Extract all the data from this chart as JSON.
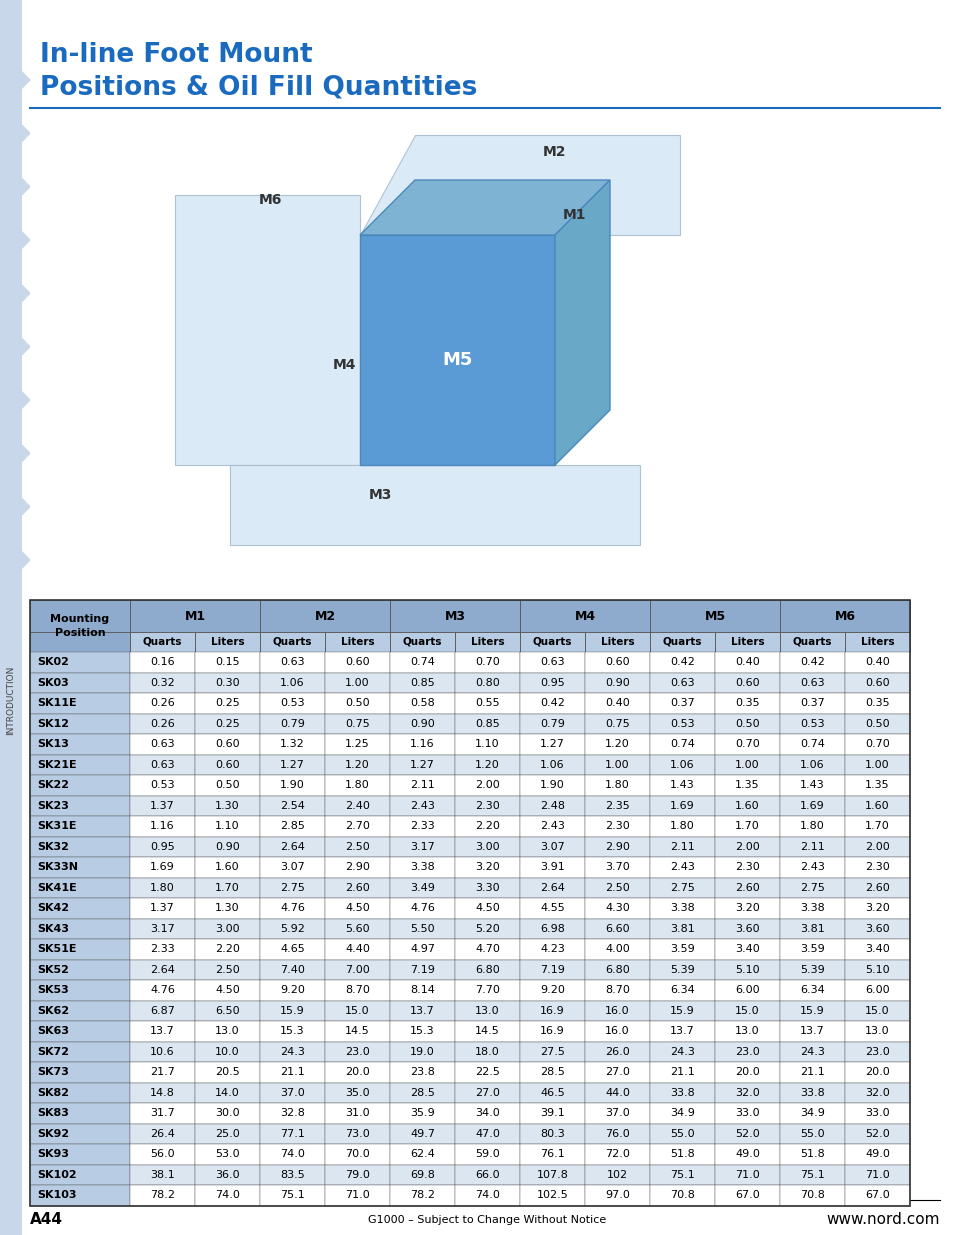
{
  "title_line1": "In-line Foot Mount",
  "title_line2": "Positions & Oil Fill Quantities",
  "title_color": "#1a6bbf",
  "page_label": "A44",
  "footer_center": "G1000 – Subject to Change Without Notice",
  "footer_right": "www.nord.com",
  "sidebar_text": "INTRODUCTION",
  "sidebar_color": "#c8d8ea",
  "header_bg": "#b8cce4",
  "row_bg_light": "#ffffff",
  "row_bg_dark": "#dce6f1",
  "col_header_bg": "#8eaacc",
  "subheader_bg": "#b8cce4",
  "mounting_positions": [
    "M1",
    "M2",
    "M3",
    "M4",
    "M5",
    "M6"
  ],
  "subheaders": [
    "Quarts",
    "Liters"
  ],
  "rows": [
    {
      "model": "SK02",
      "M1": [
        "0.16",
        "0.15"
      ],
      "M2": [
        "0.63",
        "0.60"
      ],
      "M3": [
        "0.74",
        "0.70"
      ],
      "M4": [
        "0.63",
        "0.60"
      ],
      "M5": [
        "0.42",
        "0.40"
      ],
      "M6": [
        "0.42",
        "0.40"
      ]
    },
    {
      "model": "SK03",
      "M1": [
        "0.32",
        "0.30"
      ],
      "M2": [
        "1.06",
        "1.00"
      ],
      "M3": [
        "0.85",
        "0.80"
      ],
      "M4": [
        "0.95",
        "0.90"
      ],
      "M5": [
        "0.63",
        "0.60"
      ],
      "M6": [
        "0.63",
        "0.60"
      ]
    },
    {
      "model": "SK11E",
      "M1": [
        "0.26",
        "0.25"
      ],
      "M2": [
        "0.53",
        "0.50"
      ],
      "M3": [
        "0.58",
        "0.55"
      ],
      "M4": [
        "0.42",
        "0.40"
      ],
      "M5": [
        "0.37",
        "0.35"
      ],
      "M6": [
        "0.37",
        "0.35"
      ]
    },
    {
      "model": "SK12",
      "M1": [
        "0.26",
        "0.25"
      ],
      "M2": [
        "0.79",
        "0.75"
      ],
      "M3": [
        "0.90",
        "0.85"
      ],
      "M4": [
        "0.79",
        "0.75"
      ],
      "M5": [
        "0.53",
        "0.50"
      ],
      "M6": [
        "0.53",
        "0.50"
      ]
    },
    {
      "model": "SK13",
      "M1": [
        "0.63",
        "0.60"
      ],
      "M2": [
        "1.32",
        "1.25"
      ],
      "M3": [
        "1.16",
        "1.10"
      ],
      "M4": [
        "1.27",
        "1.20"
      ],
      "M5": [
        "0.74",
        "0.70"
      ],
      "M6": [
        "0.74",
        "0.70"
      ]
    },
    {
      "model": "SK21E",
      "M1": [
        "0.63",
        "0.60"
      ],
      "M2": [
        "1.27",
        "1.20"
      ],
      "M3": [
        "1.27",
        "1.20"
      ],
      "M4": [
        "1.06",
        "1.00"
      ],
      "M5": [
        "1.06",
        "1.00"
      ],
      "M6": [
        "1.06",
        "1.00"
      ]
    },
    {
      "model": "SK22",
      "M1": [
        "0.53",
        "0.50"
      ],
      "M2": [
        "1.90",
        "1.80"
      ],
      "M3": [
        "2.11",
        "2.00"
      ],
      "M4": [
        "1.90",
        "1.80"
      ],
      "M5": [
        "1.43",
        "1.35"
      ],
      "M6": [
        "1.43",
        "1.35"
      ]
    },
    {
      "model": "SK23",
      "M1": [
        "1.37",
        "1.30"
      ],
      "M2": [
        "2.54",
        "2.40"
      ],
      "M3": [
        "2.43",
        "2.30"
      ],
      "M4": [
        "2.48",
        "2.35"
      ],
      "M5": [
        "1.69",
        "1.60"
      ],
      "M6": [
        "1.69",
        "1.60"
      ]
    },
    {
      "model": "SK31E",
      "M1": [
        "1.16",
        "1.10"
      ],
      "M2": [
        "2.85",
        "2.70"
      ],
      "M3": [
        "2.33",
        "2.20"
      ],
      "M4": [
        "2.43",
        "2.30"
      ],
      "M5": [
        "1.80",
        "1.70"
      ],
      "M6": [
        "1.80",
        "1.70"
      ]
    },
    {
      "model": "SK32",
      "M1": [
        "0.95",
        "0.90"
      ],
      "M2": [
        "2.64",
        "2.50"
      ],
      "M3": [
        "3.17",
        "3.00"
      ],
      "M4": [
        "3.07",
        "2.90"
      ],
      "M5": [
        "2.11",
        "2.00"
      ],
      "M6": [
        "2.11",
        "2.00"
      ]
    },
    {
      "model": "SK33N",
      "M1": [
        "1.69",
        "1.60"
      ],
      "M2": [
        "3.07",
        "2.90"
      ],
      "M3": [
        "3.38",
        "3.20"
      ],
      "M4": [
        "3.91",
        "3.70"
      ],
      "M5": [
        "2.43",
        "2.30"
      ],
      "M6": [
        "2.43",
        "2.30"
      ]
    },
    {
      "model": "SK41E",
      "M1": [
        "1.80",
        "1.70"
      ],
      "M2": [
        "2.75",
        "2.60"
      ],
      "M3": [
        "3.49",
        "3.30"
      ],
      "M4": [
        "2.64",
        "2.50"
      ],
      "M5": [
        "2.75",
        "2.60"
      ],
      "M6": [
        "2.75",
        "2.60"
      ]
    },
    {
      "model": "SK42",
      "M1": [
        "1.37",
        "1.30"
      ],
      "M2": [
        "4.76",
        "4.50"
      ],
      "M3": [
        "4.76",
        "4.50"
      ],
      "M4": [
        "4.55",
        "4.30"
      ],
      "M5": [
        "3.38",
        "3.20"
      ],
      "M6": [
        "3.38",
        "3.20"
      ]
    },
    {
      "model": "SK43",
      "M1": [
        "3.17",
        "3.00"
      ],
      "M2": [
        "5.92",
        "5.60"
      ],
      "M3": [
        "5.50",
        "5.20"
      ],
      "M4": [
        "6.98",
        "6.60"
      ],
      "M5": [
        "3.81",
        "3.60"
      ],
      "M6": [
        "3.81",
        "3.60"
      ]
    },
    {
      "model": "SK51E",
      "M1": [
        "2.33",
        "2.20"
      ],
      "M2": [
        "4.65",
        "4.40"
      ],
      "M3": [
        "4.97",
        "4.70"
      ],
      "M4": [
        "4.23",
        "4.00"
      ],
      "M5": [
        "3.59",
        "3.40"
      ],
      "M6": [
        "3.59",
        "3.40"
      ]
    },
    {
      "model": "SK52",
      "M1": [
        "2.64",
        "2.50"
      ],
      "M2": [
        "7.40",
        "7.00"
      ],
      "M3": [
        "7.19",
        "6.80"
      ],
      "M4": [
        "7.19",
        "6.80"
      ],
      "M5": [
        "5.39",
        "5.10"
      ],
      "M6": [
        "5.39",
        "5.10"
      ]
    },
    {
      "model": "SK53",
      "M1": [
        "4.76",
        "4.50"
      ],
      "M2": [
        "9.20",
        "8.70"
      ],
      "M3": [
        "8.14",
        "7.70"
      ],
      "M4": [
        "9.20",
        "8.70"
      ],
      "M5": [
        "6.34",
        "6.00"
      ],
      "M6": [
        "6.34",
        "6.00"
      ]
    },
    {
      "model": "SK62",
      "M1": [
        "6.87",
        "6.50"
      ],
      "M2": [
        "15.9",
        "15.0"
      ],
      "M3": [
        "13.7",
        "13.0"
      ],
      "M4": [
        "16.9",
        "16.0"
      ],
      "M5": [
        "15.9",
        "15.0"
      ],
      "M6": [
        "15.9",
        "15.0"
      ]
    },
    {
      "model": "SK63",
      "M1": [
        "13.7",
        "13.0"
      ],
      "M2": [
        "15.3",
        "14.5"
      ],
      "M3": [
        "15.3",
        "14.5"
      ],
      "M4": [
        "16.9",
        "16.0"
      ],
      "M5": [
        "13.7",
        "13.0"
      ],
      "M6": [
        "13.7",
        "13.0"
      ]
    },
    {
      "model": "SK72",
      "M1": [
        "10.6",
        "10.0"
      ],
      "M2": [
        "24.3",
        "23.0"
      ],
      "M3": [
        "19.0",
        "18.0"
      ],
      "M4": [
        "27.5",
        "26.0"
      ],
      "M5": [
        "24.3",
        "23.0"
      ],
      "M6": [
        "24.3",
        "23.0"
      ]
    },
    {
      "model": "SK73",
      "M1": [
        "21.7",
        "20.5"
      ],
      "M2": [
        "21.1",
        "20.0"
      ],
      "M3": [
        "23.8",
        "22.5"
      ],
      "M4": [
        "28.5",
        "27.0"
      ],
      "M5": [
        "21.1",
        "20.0"
      ],
      "M6": [
        "21.1",
        "20.0"
      ]
    },
    {
      "model": "SK82",
      "M1": [
        "14.8",
        "14.0"
      ],
      "M2": [
        "37.0",
        "35.0"
      ],
      "M3": [
        "28.5",
        "27.0"
      ],
      "M4": [
        "46.5",
        "44.0"
      ],
      "M5": [
        "33.8",
        "32.0"
      ],
      "M6": [
        "33.8",
        "32.0"
      ]
    },
    {
      "model": "SK83",
      "M1": [
        "31.7",
        "30.0"
      ],
      "M2": [
        "32.8",
        "31.0"
      ],
      "M3": [
        "35.9",
        "34.0"
      ],
      "M4": [
        "39.1",
        "37.0"
      ],
      "M5": [
        "34.9",
        "33.0"
      ],
      "M6": [
        "34.9",
        "33.0"
      ]
    },
    {
      "model": "SK92",
      "M1": [
        "26.4",
        "25.0"
      ],
      "M2": [
        "77.1",
        "73.0"
      ],
      "M3": [
        "49.7",
        "47.0"
      ],
      "M4": [
        "80.3",
        "76.0"
      ],
      "M5": [
        "55.0",
        "52.0"
      ],
      "M6": [
        "55.0",
        "52.0"
      ]
    },
    {
      "model": "SK93",
      "M1": [
        "56.0",
        "53.0"
      ],
      "M2": [
        "74.0",
        "70.0"
      ],
      "M3": [
        "62.4",
        "59.0"
      ],
      "M4": [
        "76.1",
        "72.0"
      ],
      "M5": [
        "51.8",
        "49.0"
      ],
      "M6": [
        "51.8",
        "49.0"
      ]
    },
    {
      "model": "SK102",
      "M1": [
        "38.1",
        "36.0"
      ],
      "M2": [
        "83.5",
        "79.0"
      ],
      "M3": [
        "69.8",
        "66.0"
      ],
      "M4": [
        "107.8",
        "102"
      ],
      "M5": [
        "75.1",
        "71.0"
      ],
      "M6": [
        "75.1",
        "71.0"
      ]
    },
    {
      "model": "SK103",
      "M1": [
        "78.2",
        "74.0"
      ],
      "M2": [
        "75.1",
        "71.0"
      ],
      "M3": [
        "78.2",
        "74.0"
      ],
      "M4": [
        "102.5",
        "97.0"
      ],
      "M5": [
        "70.8",
        "67.0"
      ],
      "M6": [
        "70.8",
        "67.0"
      ]
    }
  ]
}
